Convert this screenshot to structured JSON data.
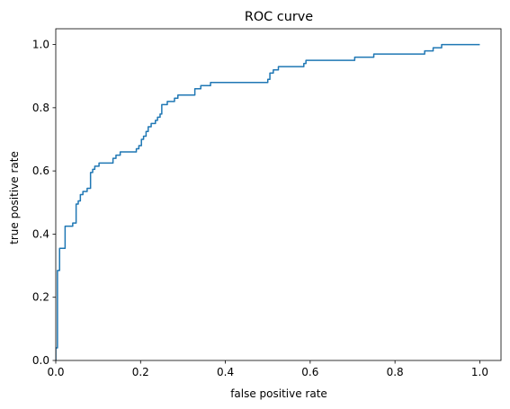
{
  "chart_data": {
    "type": "line",
    "title": "ROC curve",
    "xlabel": "false positive rate",
    "ylabel": "true positive rate",
    "xlim": [
      0.0,
      1.05
    ],
    "ylim": [
      0.0,
      1.05
    ],
    "xticks": [
      "0.0",
      "0.2",
      "0.4",
      "0.6",
      "0.8",
      "1.0"
    ],
    "yticks": [
      "0.0",
      "0.2",
      "0.4",
      "0.6",
      "0.8",
      "1.0"
    ],
    "grid": false,
    "legend": null,
    "series": [
      {
        "color": "#1f77b4",
        "step": true,
        "points": [
          [
            0.0,
            0.0
          ],
          [
            0.0,
            0.04
          ],
          [
            0.004,
            0.04
          ],
          [
            0.004,
            0.285
          ],
          [
            0.009,
            0.285
          ],
          [
            0.009,
            0.355
          ],
          [
            0.022,
            0.355
          ],
          [
            0.022,
            0.425
          ],
          [
            0.04,
            0.425
          ],
          [
            0.04,
            0.435
          ],
          [
            0.048,
            0.435
          ],
          [
            0.048,
            0.495
          ],
          [
            0.053,
            0.495
          ],
          [
            0.053,
            0.505
          ],
          [
            0.058,
            0.505
          ],
          [
            0.058,
            0.525
          ],
          [
            0.064,
            0.525
          ],
          [
            0.064,
            0.535
          ],
          [
            0.074,
            0.535
          ],
          [
            0.074,
            0.545
          ],
          [
            0.082,
            0.545
          ],
          [
            0.082,
            0.595
          ],
          [
            0.087,
            0.595
          ],
          [
            0.087,
            0.605
          ],
          [
            0.092,
            0.605
          ],
          [
            0.092,
            0.615
          ],
          [
            0.102,
            0.615
          ],
          [
            0.102,
            0.625
          ],
          [
            0.135,
            0.625
          ],
          [
            0.135,
            0.64
          ],
          [
            0.142,
            0.64
          ],
          [
            0.142,
            0.65
          ],
          [
            0.152,
            0.65
          ],
          [
            0.152,
            0.66
          ],
          [
            0.19,
            0.66
          ],
          [
            0.19,
            0.67
          ],
          [
            0.196,
            0.67
          ],
          [
            0.196,
            0.68
          ],
          [
            0.202,
            0.68
          ],
          [
            0.202,
            0.7
          ],
          [
            0.207,
            0.7
          ],
          [
            0.207,
            0.71
          ],
          [
            0.213,
            0.71
          ],
          [
            0.213,
            0.725
          ],
          [
            0.218,
            0.725
          ],
          [
            0.218,
            0.74
          ],
          [
            0.225,
            0.74
          ],
          [
            0.225,
            0.75
          ],
          [
            0.235,
            0.75
          ],
          [
            0.235,
            0.76
          ],
          [
            0.24,
            0.76
          ],
          [
            0.24,
            0.77
          ],
          [
            0.246,
            0.77
          ],
          [
            0.246,
            0.78
          ],
          [
            0.25,
            0.78
          ],
          [
            0.25,
            0.81
          ],
          [
            0.263,
            0.81
          ],
          [
            0.263,
            0.82
          ],
          [
            0.28,
            0.82
          ],
          [
            0.28,
            0.83
          ],
          [
            0.288,
            0.83
          ],
          [
            0.288,
            0.84
          ],
          [
            0.328,
            0.84
          ],
          [
            0.328,
            0.86
          ],
          [
            0.342,
            0.86
          ],
          [
            0.342,
            0.87
          ],
          [
            0.365,
            0.87
          ],
          [
            0.365,
            0.88
          ],
          [
            0.5,
            0.88
          ],
          [
            0.5,
            0.89
          ],
          [
            0.505,
            0.89
          ],
          [
            0.505,
            0.91
          ],
          [
            0.513,
            0.91
          ],
          [
            0.513,
            0.92
          ],
          [
            0.525,
            0.92
          ],
          [
            0.525,
            0.93
          ],
          [
            0.585,
            0.93
          ],
          [
            0.585,
            0.94
          ],
          [
            0.59,
            0.94
          ],
          [
            0.59,
            0.95
          ],
          [
            0.705,
            0.95
          ],
          [
            0.705,
            0.96
          ],
          [
            0.75,
            0.96
          ],
          [
            0.75,
            0.97
          ],
          [
            0.87,
            0.97
          ],
          [
            0.87,
            0.98
          ],
          [
            0.89,
            0.98
          ],
          [
            0.89,
            0.99
          ],
          [
            0.91,
            0.99
          ],
          [
            0.91,
            1.0
          ],
          [
            1.0,
            1.0
          ]
        ]
      }
    ]
  }
}
